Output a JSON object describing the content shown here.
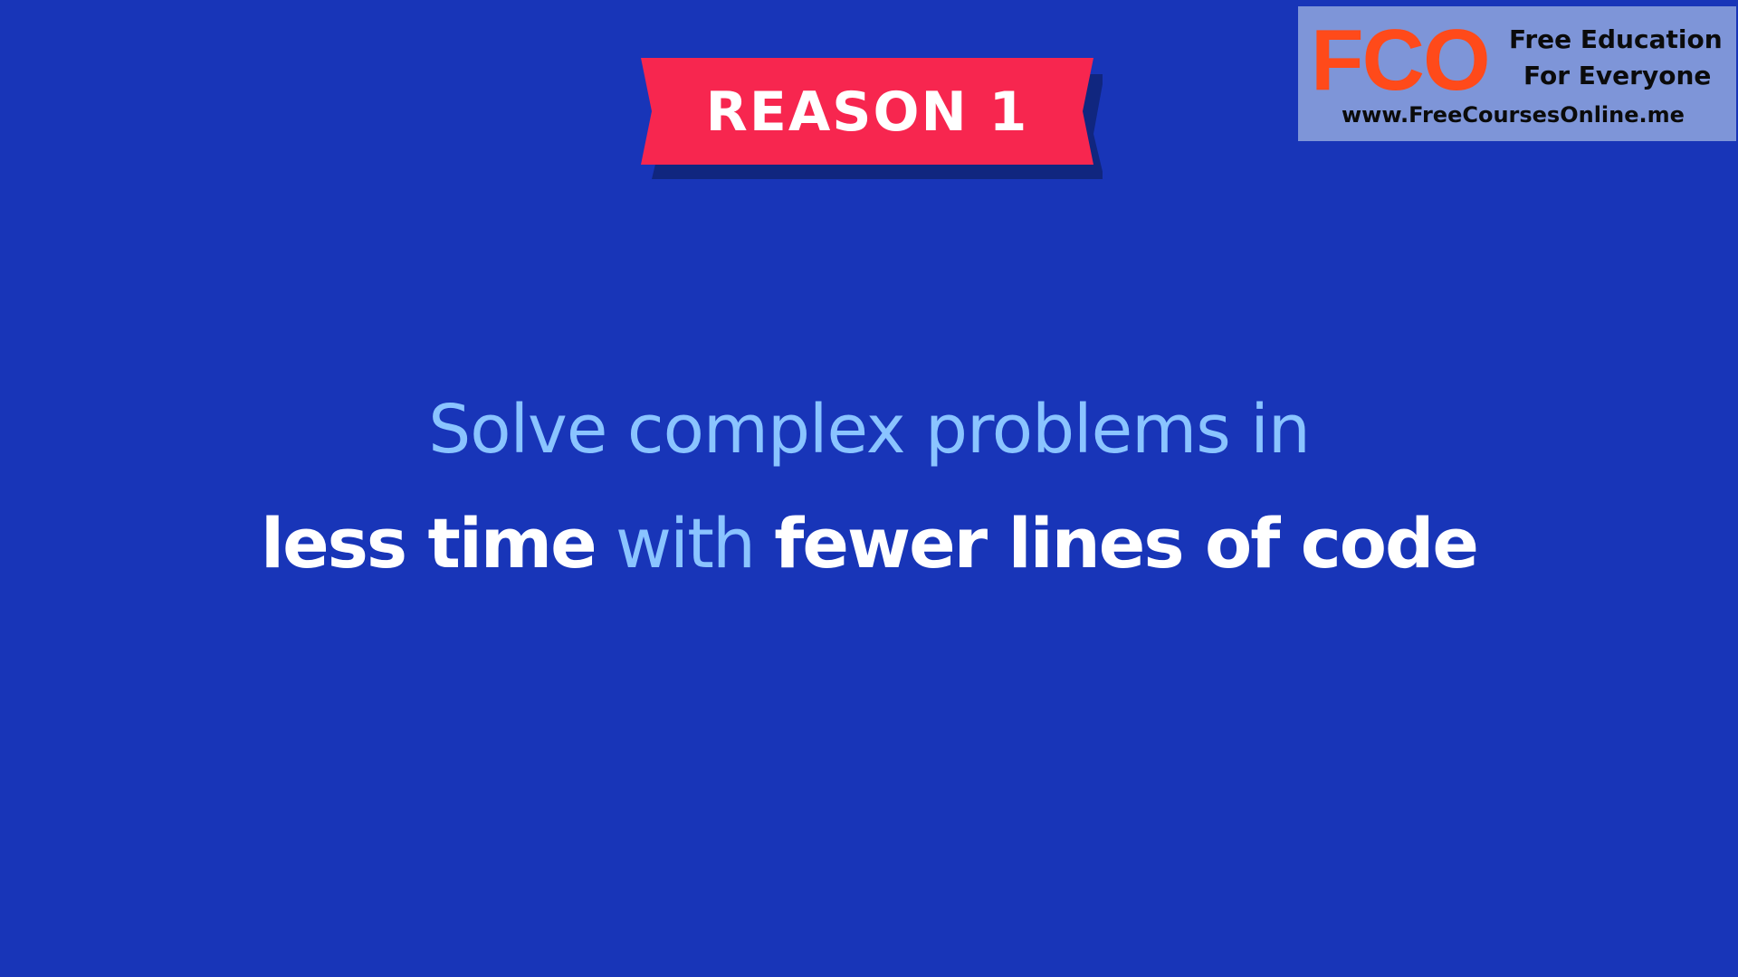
{
  "ribbon": {
    "label": "REASON 1",
    "color": "#f7264f",
    "shadow_color": "#10267f"
  },
  "watermark": {
    "logo": "FCO",
    "line1": "Free Education",
    "line2": "For Everyone",
    "url": "www.FreeCoursesOnline.me"
  },
  "headline": {
    "line1": "Solve complex problems in",
    "line2_part1": "less time",
    "line2_part2": "with",
    "line2_part3": "fewer lines of code"
  },
  "colors": {
    "background": "#1835b8",
    "accent_light_blue": "#8ac4ff",
    "text_white": "#ffffff"
  }
}
